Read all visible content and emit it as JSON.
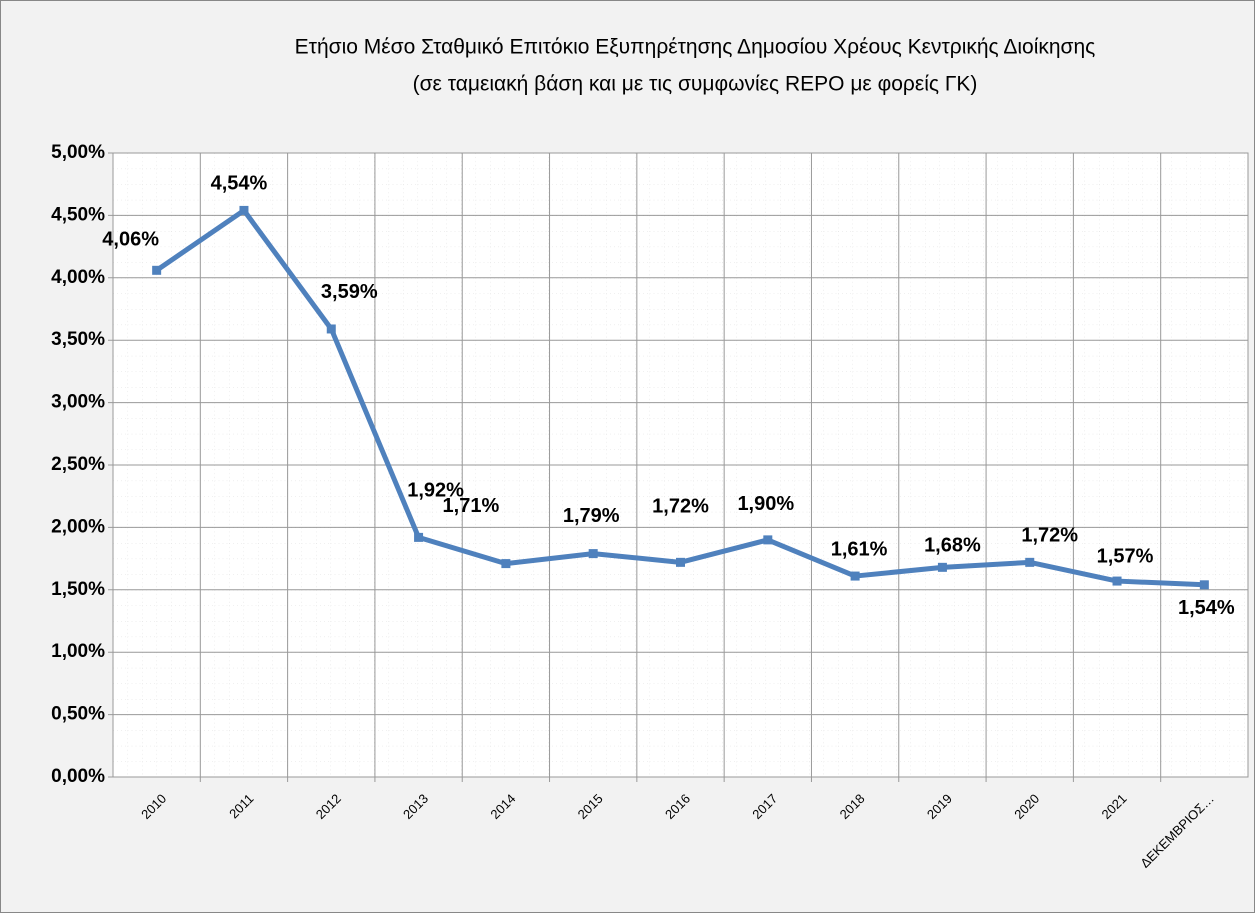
{
  "chart_data": {
    "type": "line",
    "title": "Ετήσιο Μέσο Σταθμικό Επιτόκιο Εξυπηρέτησης Δημοσίου Χρέους Κεντρικής Διοίκησης",
    "subtitle": "(σε ταμειακή βάση και με τις συμφωνίες REPO με φορείς ΓΚ)",
    "categories": [
      "2010",
      "2011",
      "2012",
      "2013",
      "2014",
      "2015",
      "2016",
      "2017",
      "2018",
      "2019",
      "2020",
      "2021",
      "ΔΕΚΕΜΒΡΙΟΣ…"
    ],
    "series": [
      {
        "color": "#4f81bd",
        "values": [
          4.06,
          4.54,
          3.59,
          1.92,
          1.71,
          1.79,
          1.72,
          1.9,
          1.61,
          1.68,
          1.72,
          1.57,
          1.54
        ],
        "value_labels": [
          "4,06%",
          "4,54%",
          "3,59%",
          "1,92%",
          "1,71%",
          "1,79%",
          "1,72%",
          "1,90%",
          "1,61%",
          "1,68%",
          "1,72%",
          "1,57%",
          "1,54%"
        ]
      }
    ],
    "ylim": [
      0,
      5
    ],
    "yticks": [
      {
        "value": 0,
        "label": "0,00%"
      },
      {
        "value": 0.5,
        "label": "0,50%"
      },
      {
        "value": 1,
        "label": "1,00%"
      },
      {
        "value": 1.5,
        "label": "1,50%"
      },
      {
        "value": 2,
        "label": "2,00%"
      },
      {
        "value": 2.5,
        "label": "2,50%"
      },
      {
        "value": 3,
        "label": "3,00%"
      },
      {
        "value": 3.5,
        "label": "3,50%"
      },
      {
        "value": 4,
        "label": "4,00%"
      },
      {
        "value": 4.5,
        "label": "4,50%"
      },
      {
        "value": 5,
        "label": "5,00%"
      }
    ],
    "grid": true
  }
}
